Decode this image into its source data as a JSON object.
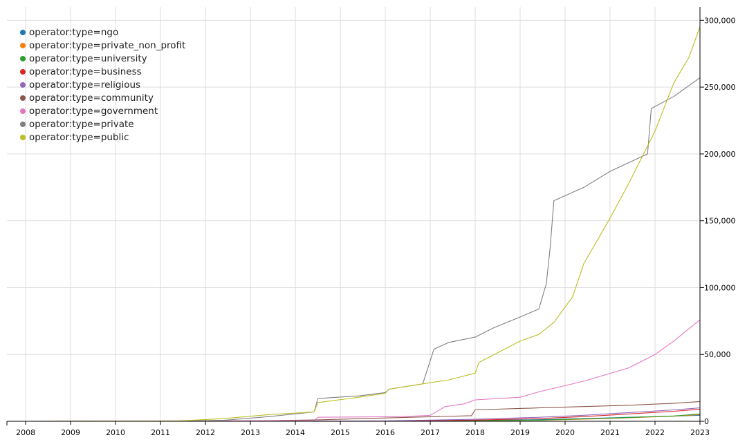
{
  "chart_data": {
    "type": "line",
    "title": "",
    "xlabel": "",
    "ylabel": "",
    "x_ticks": [
      "2008",
      "2009",
      "2010",
      "2011",
      "2012",
      "2013",
      "2014",
      "2015",
      "2016",
      "2017",
      "2018",
      "2019",
      "2020",
      "2021",
      "2022",
      "2023"
    ],
    "y_ticks": [
      "0",
      "50,000",
      "100,000",
      "150,000",
      "200,000",
      "250,000",
      "300,000"
    ],
    "xlim": [
      "2007-08",
      "2023-01"
    ],
    "ylim": [
      0,
      310000
    ],
    "grid": true,
    "legend_position": "top-left",
    "series": [
      {
        "name": "operator:type=ngo",
        "color": "#1f77b4",
        "points": [
          [
            "2013-01",
            0
          ],
          [
            "2016-01",
            100
          ],
          [
            "2018-01",
            600
          ],
          [
            "2019-06",
            1200
          ],
          [
            "2020-06",
            2000
          ],
          [
            "2021-06",
            3000
          ],
          [
            "2022-06",
            3800
          ],
          [
            "2023-01",
            4500
          ]
        ]
      },
      {
        "name": "operator:type=private_non_profit",
        "color": "#ff7f0e",
        "points": [
          [
            "2013-01",
            0
          ],
          [
            "2016-01",
            100
          ],
          [
            "2018-01",
            400
          ],
          [
            "2019-06",
            800
          ],
          [
            "2020-06",
            1600
          ],
          [
            "2021-06",
            2600
          ],
          [
            "2022-06",
            3800
          ],
          [
            "2023-01",
            5000
          ]
        ]
      },
      {
        "name": "operator:type=university",
        "color": "#2ca02c",
        "points": [
          [
            "2013-01",
            0
          ],
          [
            "2016-01",
            200
          ],
          [
            "2018-01",
            500
          ],
          [
            "2019-06",
            900
          ],
          [
            "2020-06",
            1800
          ],
          [
            "2021-06",
            2800
          ],
          [
            "2022-06",
            4000
          ],
          [
            "2023-01",
            5500
          ]
        ]
      },
      {
        "name": "operator:type=business",
        "color": "#d62728",
        "points": [
          [
            "2013-01",
            0
          ],
          [
            "2016-01",
            200
          ],
          [
            "2018-01",
            900
          ],
          [
            "2019-06",
            2000
          ],
          [
            "2020-06",
            3500
          ],
          [
            "2021-06",
            5500
          ],
          [
            "2022-06",
            7500
          ],
          [
            "2023-01",
            9000
          ]
        ]
      },
      {
        "name": "operator:type=religious",
        "color": "#9467bd",
        "points": [
          [
            "2013-01",
            0
          ],
          [
            "2016-01",
            300
          ],
          [
            "2018-01",
            1500
          ],
          [
            "2019-06",
            3000
          ],
          [
            "2020-06",
            4500
          ],
          [
            "2021-06",
            6500
          ],
          [
            "2022-06",
            8500
          ],
          [
            "2023-01",
            10000
          ]
        ]
      },
      {
        "name": "operator:type=community",
        "color": "#8c564b",
        "points": [
          [
            "2008-01",
            0
          ],
          [
            "2013-01",
            300
          ],
          [
            "2014-06",
            1000
          ],
          [
            "2016-01",
            2500
          ],
          [
            "2017-12",
            4200
          ],
          [
            "2018-01",
            8500
          ],
          [
            "2019-06",
            10000
          ],
          [
            "2020-06",
            11000
          ],
          [
            "2021-06",
            12000
          ],
          [
            "2022-06",
            13500
          ],
          [
            "2023-01",
            14800
          ]
        ]
      },
      {
        "name": "operator:type=government",
        "color": "#e377c2",
        "points": [
          [
            "2008-01",
            0
          ],
          [
            "2014-06",
            500
          ],
          [
            "2014-07",
            3000
          ],
          [
            "2016-06",
            3500
          ],
          [
            "2017-01",
            4500
          ],
          [
            "2017-05",
            11000
          ],
          [
            "2017-10",
            13000
          ],
          [
            "2018-01",
            16000
          ],
          [
            "2019-01",
            18000
          ],
          [
            "2019-06",
            22000
          ],
          [
            "2020-06",
            30000
          ],
          [
            "2021-06",
            40000
          ],
          [
            "2022-01",
            50000
          ],
          [
            "2022-06",
            60000
          ],
          [
            "2023-01",
            76000
          ]
        ]
      },
      {
        "name": "operator:type=private",
        "color": "#7f7f7f",
        "points": [
          [
            "2008-01",
            0
          ],
          [
            "2011-06",
            100
          ],
          [
            "2012-06",
            800
          ],
          [
            "2013-06",
            3500
          ],
          [
            "2014-06",
            7000
          ],
          [
            "2014-07",
            17000
          ],
          [
            "2015-06",
            19000
          ],
          [
            "2016-01",
            21500
          ],
          [
            "2016-02",
            24000
          ],
          [
            "2016-11",
            28000
          ],
          [
            "2017-02",
            54000
          ],
          [
            "2017-06",
            59000
          ],
          [
            "2018-01",
            63000
          ],
          [
            "2018-06",
            70000
          ],
          [
            "2019-01",
            78000
          ],
          [
            "2019-06",
            84000
          ],
          [
            "2019-08",
            103000
          ],
          [
            "2019-09",
            130000
          ],
          [
            "2019-10",
            165000
          ],
          [
            "2020-06",
            175000
          ],
          [
            "2021-01",
            187000
          ],
          [
            "2021-11",
            200000
          ],
          [
            "2021-12",
            234000
          ],
          [
            "2022-06",
            243000
          ],
          [
            "2023-01",
            257000
          ]
        ]
      },
      {
        "name": "operator:type=public",
        "color": "#bcbd22",
        "points": [
          [
            "2008-01",
            0
          ],
          [
            "2011-06",
            200
          ],
          [
            "2012-06",
            2000
          ],
          [
            "2013-06",
            5000
          ],
          [
            "2014-06",
            7000
          ],
          [
            "2014-07",
            14000
          ],
          [
            "2015-06",
            18000
          ],
          [
            "2016-01",
            21000
          ],
          [
            "2016-02",
            24000
          ],
          [
            "2016-11",
            28000
          ],
          [
            "2017-06",
            31000
          ],
          [
            "2018-01",
            36000
          ],
          [
            "2018-02",
            44000
          ],
          [
            "2019-01",
            60000
          ],
          [
            "2019-06",
            65000
          ],
          [
            "2019-10",
            74000
          ],
          [
            "2020-03",
            93000
          ],
          [
            "2020-06",
            118000
          ],
          [
            "2021-01",
            152000
          ],
          [
            "2021-06",
            178000
          ],
          [
            "2022-01",
            217000
          ],
          [
            "2022-06",
            253000
          ],
          [
            "2022-10",
            272000
          ],
          [
            "2023-01",
            295000
          ]
        ]
      }
    ]
  }
}
